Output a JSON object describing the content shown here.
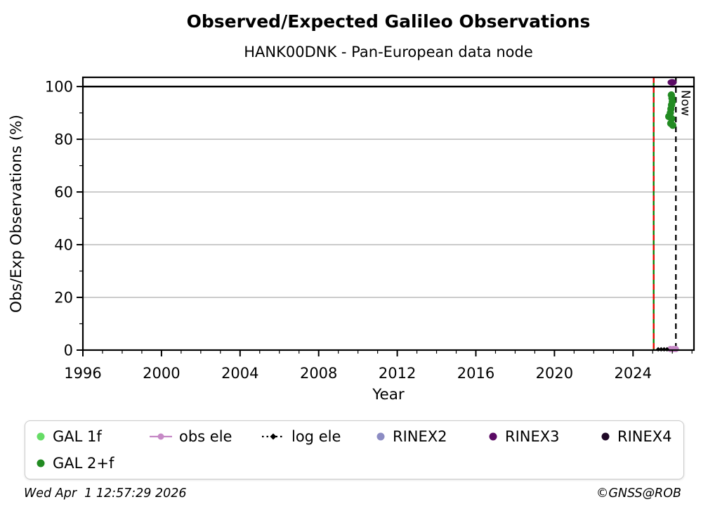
{
  "footer": {
    "left": "Wed Apr  1 12:57:29 2026",
    "right": "©GNSS@ROB"
  },
  "chart_data": {
    "type": "scatter",
    "title": "Observed/Expected Galileo Observations",
    "subtitle": "HANK00DNK - Pan-European data node",
    "xlabel": "Year",
    "ylabel": "Obs/Exp Observations (%)",
    "xlim": [
      1996,
      2027.1
    ],
    "ylim": [
      0,
      103.5
    ],
    "x_major_ticks": [
      1996,
      2000,
      2004,
      2008,
      2012,
      2016,
      2020,
      2024
    ],
    "x_minor_step": 1,
    "y_major_ticks": [
      0,
      20,
      40,
      60,
      80,
      100
    ],
    "y_minor_ticks": [
      10,
      30,
      50,
      70,
      90
    ],
    "grid": "horizontal-only",
    "colors": {
      "grid": "#b3b3b3",
      "axis": "#000000"
    },
    "hline": {
      "y": 100,
      "color": "#000000"
    },
    "vlines": [
      {
        "name": "campaign-start-line-green",
        "x": 2025.05,
        "color": "#008000",
        "style": "solid"
      },
      {
        "name": "campaign-start-line-red",
        "x": 2025.05,
        "color": "#ee0000",
        "style": "dashed"
      },
      {
        "name": "now-line",
        "x": 2026.18,
        "color": "#000000",
        "style": "dashed",
        "label": "Now"
      }
    ],
    "series": [
      {
        "id": "gal-1f",
        "name": "GAL 1f",
        "color": "#66dc66",
        "marker": "circle",
        "line": null,
        "points": []
      },
      {
        "id": "gal-2plus-f",
        "name": "GAL 2+f",
        "color": "#228b22",
        "marker": "circle",
        "line": null,
        "points": [
          [
            2025.95,
            96.8
          ],
          [
            2025.98,
            95.6
          ],
          [
            2026.0,
            94.3
          ],
          [
            2025.96,
            93.0
          ],
          [
            2025.93,
            91.5
          ],
          [
            2025.9,
            90.0
          ],
          [
            2025.82,
            88.6
          ],
          [
            2025.97,
            87.8
          ],
          [
            2025.92,
            86.0
          ],
          [
            2026.02,
            85.3
          ]
        ]
      },
      {
        "id": "obs-ele",
        "name": "obs ele",
        "color": "#c689c6",
        "marker": "circle",
        "marker_size": 4.5,
        "line": "solid",
        "points": [
          [
            2025.9,
            0.4
          ],
          [
            2026.05,
            0.4
          ],
          [
            2026.18,
            0.4
          ]
        ]
      },
      {
        "id": "log-ele",
        "name": "log ele",
        "color": "#000000",
        "marker": "diamond",
        "line": "dotted",
        "points": [
          [
            2025.28,
            0.3
          ],
          [
            2025.43,
            0.3
          ],
          [
            2025.58,
            0.3
          ],
          [
            2025.73,
            0.3
          ]
        ]
      },
      {
        "id": "rinex2",
        "name": "RINEX2",
        "color": "#8c8cc3",
        "marker": "circle",
        "line": null,
        "points": []
      },
      {
        "id": "rinex3",
        "name": "RINEX3",
        "color": "#5a0a64",
        "marker": "ellipse",
        "line": null,
        "points": [
          [
            2025.99,
            101.6
          ]
        ]
      },
      {
        "id": "rinex4",
        "name": "RINEX4",
        "color": "#1e0826",
        "marker": "circle",
        "line": null,
        "points": []
      }
    ],
    "legend": {
      "position": "bottom",
      "columns": [
        [
          "GAL 1f",
          "GAL 2+f"
        ],
        [
          "obs ele"
        ],
        [
          "log ele"
        ],
        [
          "RINEX2"
        ],
        [
          "RINEX3"
        ],
        [
          "RINEX4"
        ]
      ]
    }
  }
}
